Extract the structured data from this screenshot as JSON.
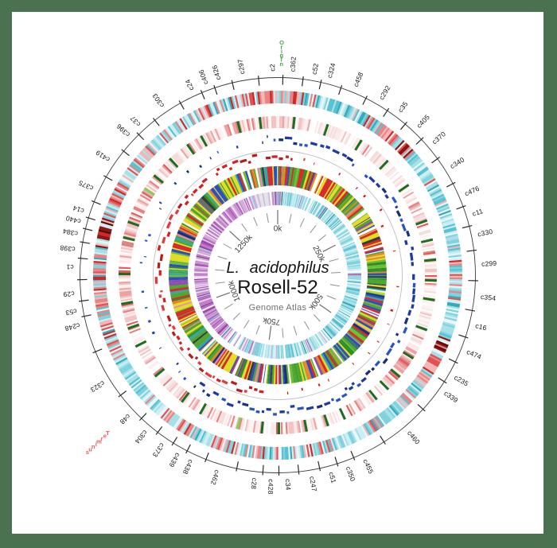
{
  "frame": {
    "border_color": "#4a7150",
    "canvas_color": "#ffffff"
  },
  "center_titles": {
    "species": "L. acidophilus",
    "strain": "Rosell-52",
    "subtitle": "Genome Atlas"
  },
  "chart_data": {
    "type": "circular-genome-atlas",
    "organism": "L. acidophilus",
    "strain": "Rosell-52",
    "title": "Genome Atlas",
    "genome_length_bp": 1440000,
    "scale": {
      "minor_tick_bp": 50000,
      "major_tick_bp": 250000,
      "labels": [
        "0k",
        "250k",
        "500k",
        "750k",
        "1000k",
        "1250k"
      ],
      "label_color": "#3a3a3a",
      "tick_color": "#8f8f8f"
    },
    "origin_marker": {
      "label": "Origin",
      "color": "#4aa44e",
      "angle_deg": 1.0
    },
    "terminus_marker": {
      "label": "Terminus",
      "color": "#e25c5c",
      "angle_deg": 227.0
    },
    "contig_count": 51,
    "contigs": [
      {
        "name": "c2",
        "angle": 358.7
      },
      {
        "name": "c362",
        "angle": 4.3
      },
      {
        "name": "c52",
        "angle": 10.4
      },
      {
        "name": "c324",
        "angle": 14.8
      },
      {
        "name": "c458",
        "angle": 22.5
      },
      {
        "name": "c292",
        "angle": 30.5
      },
      {
        "name": "c35",
        "angle": 36.8
      },
      {
        "name": "c405",
        "angle": 43.5
      },
      {
        "name": "c370",
        "angle": 49.7
      },
      {
        "name": "c340",
        "angle": 58.1
      },
      {
        "name": "c476",
        "angle": 66.7
      },
      {
        "name": "c11",
        "angle": 72.7
      },
      {
        "name": "c330",
        "angle": 78.6
      },
      {
        "name": "c299",
        "angle": 87.0
      },
      {
        "name": "c354",
        "angle": 96.2
      },
      {
        "name": "c16",
        "angle": 104.4
      },
      {
        "name": "c474",
        "angle": 112.1
      },
      {
        "name": "c235",
        "angle": 120.0
      },
      {
        "name": "c339",
        "angle": 125.2
      },
      {
        "name": "c460",
        "angle": 140.2
      },
      {
        "name": "c455",
        "angle": 154.8
      },
      {
        "name": "c350",
        "angle": 160.0
      },
      {
        "name": "c51",
        "angle": 165.0
      },
      {
        "name": "c247",
        "angle": 170.5
      },
      {
        "name": "c34",
        "angle": 177.3
      },
      {
        "name": "c428",
        "angle": 182.0
      },
      {
        "name": "c28",
        "angle": 186.6
      },
      {
        "name": "c462",
        "angle": 197.3
      },
      {
        "name": "c438",
        "angle": 205.2
      },
      {
        "name": "c439",
        "angle": 209.3
      },
      {
        "name": "c373",
        "angle": 214.4
      },
      {
        "name": "c304",
        "angle": 220.3
      },
      {
        "name": "c48",
        "angle": 226.8
      },
      {
        "name": "c323",
        "angle": 238.4
      },
      {
        "name": "c248",
        "angle": 256.0
      },
      {
        "name": "c53",
        "angle": 260.0
      },
      {
        "name": "c29",
        "angle": 265.0
      },
      {
        "name": "c1",
        "angle": 272.4
      },
      {
        "name": "c398",
        "angle": 277.4
      },
      {
        "name": "c384",
        "angle": 281.8
      },
      {
        "name": "c440",
        "angle": 285.3
      },
      {
        "name": "c14",
        "angle": 288.4
      },
      {
        "name": "c375",
        "angle": 295.2
      },
      {
        "name": "c419",
        "angle": 304.4
      },
      {
        "name": "c396",
        "angle": 313.3
      },
      {
        "name": "c37",
        "angle": 317.4
      },
      {
        "name": "c303",
        "angle": 325.8
      },
      {
        "name": "c24",
        "angle": 335.3
      },
      {
        "name": "c406",
        "angle": 339.6
      },
      {
        "name": "c426",
        "angle": 343.3
      },
      {
        "name": "c297",
        "angle": 350.2
      }
    ],
    "rings": [
      {
        "id": "A",
        "name": "heatmap-cyan-red",
        "seed": 7,
        "step": 0.55,
        "cyan": [
          [
            "#eaf6f8",
            0.16
          ],
          [
            "#cdeef2",
            0.22
          ],
          [
            "#a6e0e8",
            0.24
          ],
          [
            "#7fd2de",
            0.2
          ],
          [
            "#57c2d1",
            0.12
          ],
          [
            "#35aabd",
            0.06
          ]
        ],
        "red": [
          [
            "#f2b6b6",
            0.3
          ],
          [
            "#e88484",
            0.3
          ],
          [
            "#e05252",
            0.25
          ],
          [
            "#cc2a2a",
            0.15
          ]
        ],
        "dark_red": [
          [
            "#8e1414",
            0.6
          ],
          [
            "#5a0808",
            0.4
          ]
        ],
        "clusters": [
          [
            357,
            5,
            0.85,
            0
          ],
          [
            5,
            4,
            0.6,
            0
          ],
          [
            38,
            5,
            0.75,
            0
          ],
          [
            45.5,
            2.5,
            0.95,
            1
          ],
          [
            57,
            3,
            0.4,
            0
          ],
          [
            90,
            5,
            0.55,
            0
          ],
          [
            112,
            3,
            0.9,
            1
          ],
          [
            121,
            4,
            0.85,
            0
          ],
          [
            126,
            2,
            0.5,
            0
          ],
          [
            133,
            3,
            0.6,
            0
          ],
          [
            146,
            3,
            0.55,
            0
          ],
          [
            170,
            4,
            0.5,
            0
          ],
          [
            186,
            3,
            0.55,
            0
          ],
          [
            196,
            3,
            0.45,
            0
          ],
          [
            210,
            5,
            0.65,
            0
          ],
          [
            218,
            3,
            0.5,
            0
          ],
          [
            253,
            5,
            0.65,
            0
          ],
          [
            263,
            5,
            0.7,
            0
          ],
          [
            272,
            4,
            0.6,
            0
          ],
          [
            284,
            4,
            0.8,
            1
          ],
          [
            296,
            4,
            0.75,
            0
          ],
          [
            311,
            4,
            0.55,
            0
          ],
          [
            322,
            3,
            0.4,
            0
          ],
          [
            336,
            4,
            0.5,
            0
          ],
          [
            345,
            3,
            0.45,
            0
          ]
        ]
      },
      {
        "id": "B",
        "name": "heatmap-pink-green-bars",
        "seed": 13,
        "step": 0.6,
        "bg": [
          [
            "#ffffff",
            0.3
          ],
          [
            "#fdf3f3",
            0.3
          ],
          [
            "#fbe9e9",
            0.25
          ],
          [
            "#f7dcdc",
            0.15
          ]
        ],
        "streak": [
          [
            "#f3c2c2",
            0.35
          ],
          [
            "#eda2a2",
            0.3
          ],
          [
            "#e57f7f",
            0.25
          ],
          [
            "#dc5a5a",
            0.1
          ]
        ],
        "green_bar": "#1b6e1b",
        "light_green_bar": "#86cf5a",
        "clusters": [
          [
            2,
            5,
            0.45,
            0
          ],
          [
            30,
            6,
            0.3,
            0
          ],
          [
            62,
            7,
            0.35,
            0
          ],
          [
            90,
            9,
            0.4,
            0
          ],
          [
            121,
            7,
            0.5,
            0
          ],
          [
            134,
            5,
            0.5,
            0
          ],
          [
            155,
            7,
            0.4,
            0
          ],
          [
            175,
            7,
            0.45,
            0
          ],
          [
            196,
            9,
            0.5,
            0
          ],
          [
            215,
            7,
            0.45,
            0
          ],
          [
            240,
            9,
            0.5,
            0
          ],
          [
            263,
            11,
            0.6,
            0
          ],
          [
            286,
            11,
            0.6,
            0
          ],
          [
            306,
            7,
            0.5,
            0
          ],
          [
            330,
            7,
            0.45,
            0
          ],
          [
            350,
            5,
            0.5,
            0
          ]
        ]
      },
      {
        "id": "C",
        "name": "dash-ring-blue",
        "seed": 21,
        "dense_from": 0,
        "dense_to": 214,
        "colors": [
          [
            "#1d3ba2",
            0.45
          ],
          [
            "#2a53c4",
            0.35
          ],
          [
            "#16307f",
            0.2
          ]
        ]
      },
      {
        "id": "D",
        "name": "dash-ring-red",
        "seed": 42,
        "dense_from": 184,
        "dense_to": 366,
        "colors": [
          [
            "#d32222",
            0.5
          ],
          [
            "#b81c1c",
            0.25
          ],
          [
            "#e13a3a",
            0.25
          ]
        ]
      },
      {
        "id": "E",
        "name": "gene-category-ring",
        "seed": 77,
        "palette": [
          [
            "#4ea62e",
            0.17
          ],
          [
            "#6cbf35",
            0.08
          ],
          [
            "#2e8f27",
            0.06
          ],
          [
            "#e3dc26",
            0.17
          ],
          [
            "#d8282a",
            0.13
          ],
          [
            "#2f4dc0",
            0.1
          ],
          [
            "#ffffff",
            0.06
          ],
          [
            "#e2872e",
            0.05
          ],
          [
            "#36a6a8",
            0.05
          ],
          [
            "#8c4fae",
            0.04
          ],
          [
            "#1d2f77",
            0.03
          ],
          [
            "#e389b4",
            0.03
          ],
          [
            "#3a3a3a",
            0.02
          ],
          [
            "#b7e03c",
            0.01
          ]
        ],
        "gaps": [
          [
            22.5,
            2.0
          ],
          [
            204,
            1.6
          ],
          [
            348.5,
            1.2
          ]
        ]
      },
      {
        "id": "F",
        "name": "skew-ring-cyan-purple",
        "seed": 99,
        "step": 0.7,
        "cyan_to_deg": 195,
        "purple_from_deg": 225,
        "stipple": [
          344,
          357.5
        ],
        "cyan": [
          [
            "#ffffff",
            0.1
          ],
          [
            "#d4f0f4",
            0.2
          ],
          [
            "#a8e2ea",
            0.28
          ],
          [
            "#7bd0dc",
            0.3
          ],
          [
            "#4fb9c9",
            0.1
          ],
          [
            "#1d8fa2",
            0.02
          ]
        ],
        "purple": [
          [
            "#ffffff",
            0.1
          ],
          [
            "#ecd8ee",
            0.15
          ],
          [
            "#d4a8da",
            0.25
          ],
          [
            "#bc7cc6",
            0.3
          ],
          [
            "#a653b2",
            0.15
          ],
          [
            "#8a3398",
            0.05
          ]
        ],
        "stipple_palette": [
          [
            "#e4e2ea",
            0.5
          ],
          [
            "#d8d4e2",
            0.2
          ],
          [
            "#c9a8d2",
            0.12
          ],
          [
            "#b474be",
            0.08
          ],
          [
            "#ffffff",
            0.1
          ]
        ],
        "dark_bar": {
          "angle": 3.2,
          "color": "#0e6e7e"
        }
      }
    ]
  }
}
